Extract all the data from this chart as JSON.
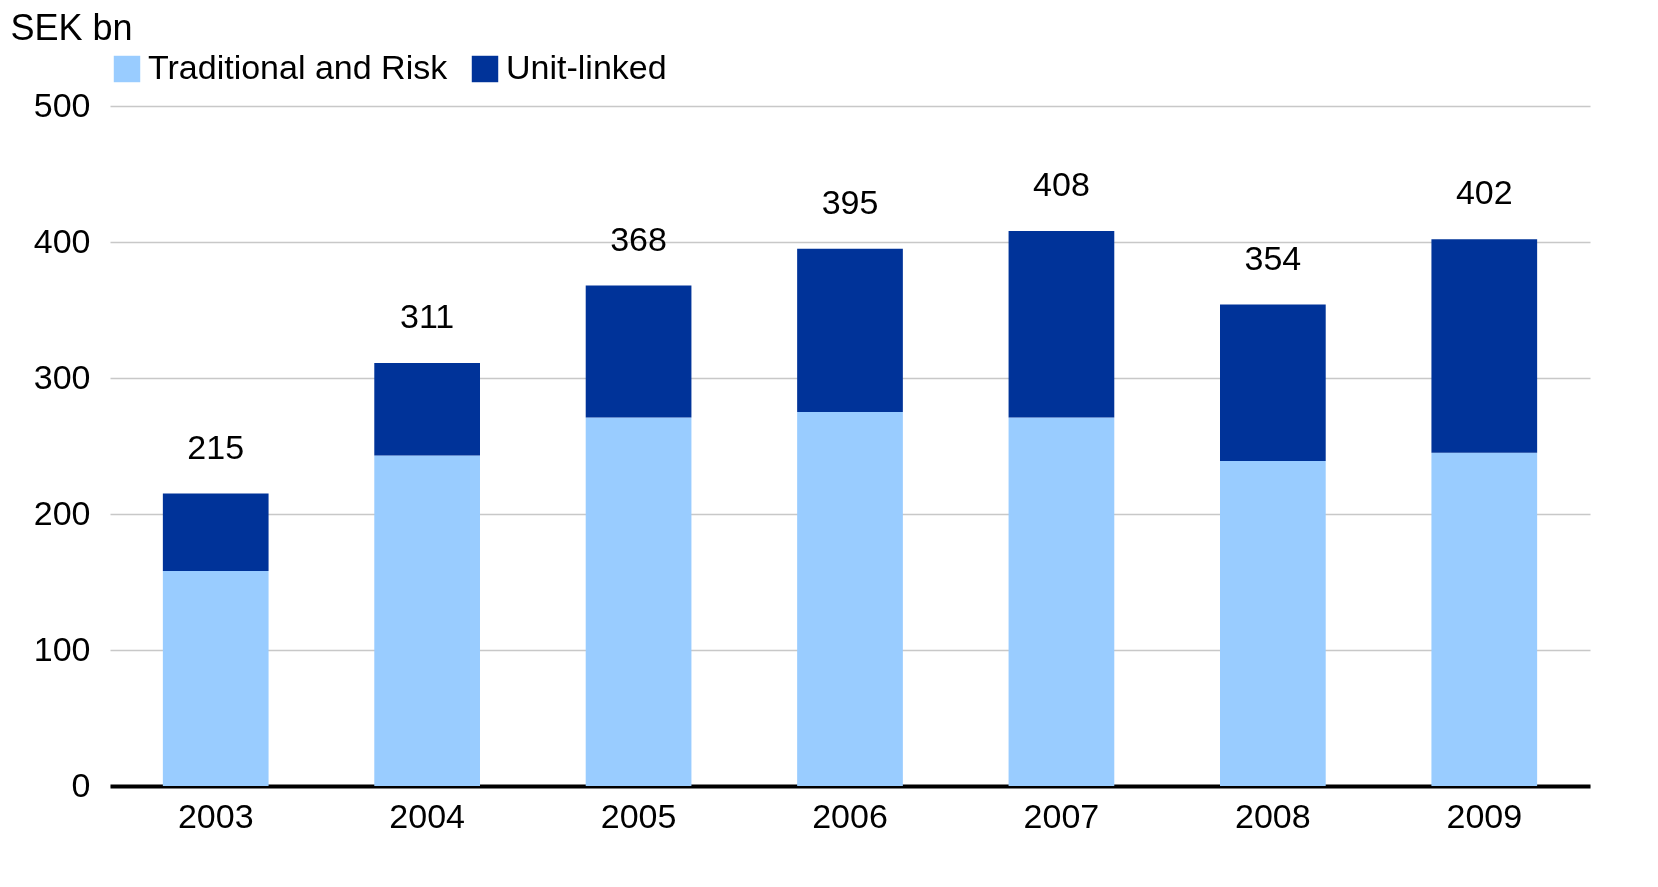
{
  "chart_data": {
    "type": "bar",
    "stacked": true,
    "ylabel": "SEK bn",
    "categories": [
      "2003",
      "2004",
      "2005",
      "2006",
      "2007",
      "2008",
      "2009"
    ],
    "series": [
      {
        "name": "Traditional and Risk",
        "color": "#99ccff",
        "values": [
          158,
          243,
          271,
          275,
          271,
          239,
          245
        ]
      },
      {
        "name": "Unit-linked",
        "color": "#003399",
        "values": [
          57,
          68,
          97,
          120,
          137,
          115,
          157
        ]
      }
    ],
    "totals": [
      "215",
      "311",
      "368",
      "395",
      "408",
      "354",
      "402"
    ],
    "ylim": [
      0,
      500
    ],
    "yticks": [
      0,
      100,
      200,
      300,
      400,
      500
    ],
    "grid": "y",
    "legend": "top"
  }
}
